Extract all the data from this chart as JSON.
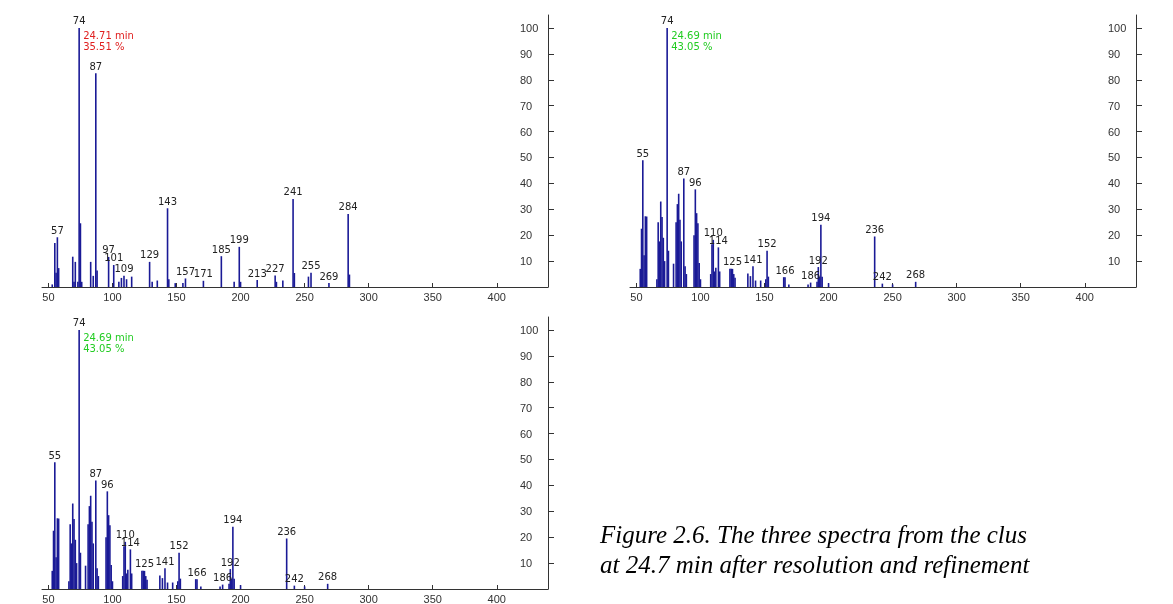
{
  "chart_data": [
    {
      "type": "bar",
      "xlim": [
        45,
        440
      ],
      "xticks": [
        50,
        100,
        150,
        200,
        250,
        300,
        350,
        400
      ],
      "ylim": [
        0,
        105
      ],
      "yticks": [
        10,
        20,
        30,
        40,
        50,
        60,
        70,
        80,
        90,
        100
      ],
      "grid": false,
      "x": [
        53,
        55,
        56,
        57,
        58,
        69,
        70,
        71,
        73,
        74,
        75,
        76,
        83,
        85,
        87,
        88,
        97,
        101,
        105,
        107,
        109,
        111,
        115,
        129,
        131,
        135,
        143,
        144,
        149,
        155,
        157,
        171,
        185,
        195,
        199,
        200,
        213,
        227,
        228,
        233,
        241,
        242,
        253,
        255,
        269,
        284,
        285
      ],
      "series": [
        {
          "color": "#1a1a96",
          "values": [
            1,
            17,
            5.5,
            19.2,
            7.3,
            11.7,
            2,
            9.7,
            2,
            100,
            24.6,
            2,
            9.7,
            4.3,
            82.5,
            6.4,
            11.6,
            8.5,
            2,
            3.5,
            4.3,
            3,
            4,
            9.7,
            2,
            2.5,
            30.4,
            3,
            1.5,
            1.5,
            3.3,
            2.4,
            11.9,
            2,
            15.5,
            2,
            2.7,
            4.4,
            2,
            2.5,
            34,
            5.4,
            4,
            5.5,
            1.5,
            28.2,
            4.8
          ]
        }
      ],
      "annotations": [
        "24.71 min",
        "35.51 %",
        {
          "text": "57",
          "x": 57,
          "y": 19.2
        },
        {
          "text": "74",
          "x": 74,
          "y": 100
        },
        {
          "text": "87",
          "x": 87,
          "y": 82.5
        },
        {
          "text": "97",
          "x": 97,
          "y": 11.6
        },
        {
          "text": "101",
          "x": 101,
          "y": 8.5
        },
        {
          "text": "109",
          "x": 109,
          "y": 4.3
        },
        {
          "text": "129",
          "x": 129,
          "y": 9.7
        },
        {
          "text": "143",
          "x": 143,
          "y": 30.4
        },
        {
          "text": "157",
          "x": 157,
          "y": 3.3
        },
        {
          "text": "171",
          "x": 171,
          "y": 2.4
        },
        {
          "text": "185",
          "x": 185,
          "y": 11.9
        },
        {
          "text": "199",
          "x": 199,
          "y": 15.5
        },
        {
          "text": "213",
          "x": 213,
          "y": 2.7
        },
        {
          "text": "227",
          "x": 227,
          "y": 4.4
        },
        {
          "text": "241",
          "x": 241,
          "y": 34
        },
        {
          "text": "255",
          "x": 255,
          "y": 5.5
        },
        {
          "text": "269",
          "x": 269,
          "y": 1.5
        },
        {
          "text": "284",
          "x": 284,
          "y": 28.2
        }
      ]
    },
    {
      "type": "bar",
      "xlim": [
        45,
        440
      ],
      "xticks": [
        50,
        100,
        150,
        200,
        250,
        300,
        350,
        400
      ],
      "ylim": [
        0,
        105
      ],
      "yticks": [
        10,
        20,
        30,
        40,
        50,
        60,
        70,
        80,
        90,
        100
      ],
      "grid": false,
      "x": [
        53,
        54,
        55,
        56,
        57,
        58,
        66,
        67,
        68,
        69,
        70,
        71,
        72,
        74,
        75,
        79,
        81,
        82,
        83,
        84,
        85,
        87,
        88,
        89,
        95,
        96,
        97,
        98,
        99,
        100,
        108,
        109,
        110,
        111,
        112,
        114,
        115,
        123,
        124,
        125,
        126,
        127,
        137,
        139,
        141,
        143,
        147,
        151,
        152,
        153,
        165,
        166,
        169,
        184,
        186,
        191,
        192,
        193,
        194,
        195,
        200,
        236,
        242,
        250,
        268
      ],
      "series": [
        {
          "color": "#1a1a96",
          "values": [
            7,
            22.5,
            48.9,
            12.3,
            27.3,
            27.2,
            3,
            25,
            17.6,
            33,
            27,
            19,
            10,
            100,
            14,
            9,
            25,
            32,
            36,
            26,
            17.6,
            41.9,
            8,
            5,
            20,
            37.7,
            28.5,
            24.6,
            9.3,
            3,
            5,
            16.5,
            18.2,
            6,
            7.4,
            15.3,
            6,
            7,
            7,
            7,
            5,
            3.6,
            5.2,
            4.2,
            8,
            2.5,
            2.5,
            3,
            14,
            4,
            3.8,
            3.8,
            1,
            1,
            1.7,
            2,
            7.7,
            4,
            24,
            4,
            1.5,
            19.5,
            1.3,
            1,
            2
          ]
        }
      ],
      "annotations": [
        "24.69 min",
        "43.05 %",
        {
          "text": "55",
          "x": 55,
          "y": 48.9
        },
        {
          "text": "74",
          "x": 74,
          "y": 100
        },
        {
          "text": "87",
          "x": 87,
          "y": 41.9
        },
        {
          "text": "96",
          "x": 96,
          "y": 37.7
        },
        {
          "text": "110",
          "x": 110,
          "y": 18.2
        },
        {
          "text": "114",
          "x": 114,
          "y": 15.3
        },
        {
          "text": "125",
          "x": 125,
          "y": 7
        },
        {
          "text": "141",
          "x": 141,
          "y": 8
        },
        {
          "text": "152",
          "x": 152,
          "y": 14
        },
        {
          "text": "166",
          "x": 166,
          "y": 3.8
        },
        {
          "text": "186",
          "x": 186,
          "y": 1.7
        },
        {
          "text": "192",
          "x": 192,
          "y": 7.7
        },
        {
          "text": "194",
          "x": 194,
          "y": 24
        },
        {
          "text": "236",
          "x": 236,
          "y": 19.5
        },
        {
          "text": "242",
          "x": 242,
          "y": 1.3
        },
        {
          "text": "268",
          "x": 268,
          "y": 2
        }
      ]
    },
    {
      "type": "bar",
      "xlim": [
        45,
        440
      ],
      "xticks": [
        50,
        100,
        150,
        200,
        250,
        300,
        350,
        400
      ],
      "ylim": [
        0,
        105
      ],
      "yticks": [
        10,
        20,
        30,
        40,
        50,
        60,
        70,
        80,
        90,
        100
      ],
      "grid": false,
      "x": [
        53,
        54,
        55,
        56,
        57,
        58,
        66,
        67,
        68,
        69,
        70,
        71,
        72,
        74,
        75,
        79,
        81,
        82,
        83,
        84,
        85,
        87,
        88,
        89,
        95,
        96,
        97,
        98,
        99,
        100,
        108,
        109,
        110,
        111,
        112,
        114,
        115,
        123,
        124,
        125,
        126,
        127,
        137,
        139,
        141,
        143,
        147,
        151,
        152,
        153,
        165,
        166,
        169,
        184,
        186,
        191,
        192,
        193,
        194,
        195,
        200,
        236,
        242,
        250,
        268
      ],
      "series": [
        {
          "color": "#1a1a96",
          "values": [
            7,
            22.5,
            48.9,
            12.3,
            27.3,
            27.2,
            3,
            25,
            17.6,
            33,
            27,
            19,
            10,
            100,
            14,
            9,
            25,
            32,
            36,
            26,
            17.6,
            41.9,
            8,
            5,
            20,
            37.7,
            28.5,
            24.6,
            9.3,
            3,
            5,
            16.5,
            18.2,
            6,
            7.4,
            15.3,
            6,
            7,
            7,
            7,
            5,
            3.6,
            5.2,
            4.2,
            8,
            2.5,
            2.5,
            3,
            14,
            4,
            3.8,
            3.8,
            1,
            1,
            1.7,
            2,
            7.7,
            4,
            24,
            4,
            1.5,
            19.5,
            1.3,
            1,
            2
          ]
        }
      ],
      "annotations": [
        "24.69 min",
        "43.05 %",
        {
          "text": "55",
          "x": 55,
          "y": 48.9
        },
        {
          "text": "74",
          "x": 74,
          "y": 100
        },
        {
          "text": "87",
          "x": 87,
          "y": 41.9
        },
        {
          "text": "96",
          "x": 96,
          "y": 37.7
        },
        {
          "text": "110",
          "x": 110,
          "y": 18.2
        },
        {
          "text": "114",
          "x": 114,
          "y": 15.3
        },
        {
          "text": "125",
          "x": 125,
          "y": 7
        },
        {
          "text": "141",
          "x": 141,
          "y": 8
        },
        {
          "text": "152",
          "x": 152,
          "y": 14
        },
        {
          "text": "166",
          "x": 166,
          "y": 3.8
        },
        {
          "text": "186",
          "x": 186,
          "y": 1.7
        },
        {
          "text": "192",
          "x": 192,
          "y": 7.7
        },
        {
          "text": "194",
          "x": 194,
          "y": 24
        },
        {
          "text": "236",
          "x": 236,
          "y": 19.5
        },
        {
          "text": "242",
          "x": 242,
          "y": 1.3
        },
        {
          "text": "268",
          "x": 268,
          "y": 2
        }
      ]
    },
    {
      "type": "other",
      "annotations": [
        "Figure 2.6. The three spectra from the clus",
        "at 24.7 min after resolution and refinement"
      ]
    }
  ]
}
